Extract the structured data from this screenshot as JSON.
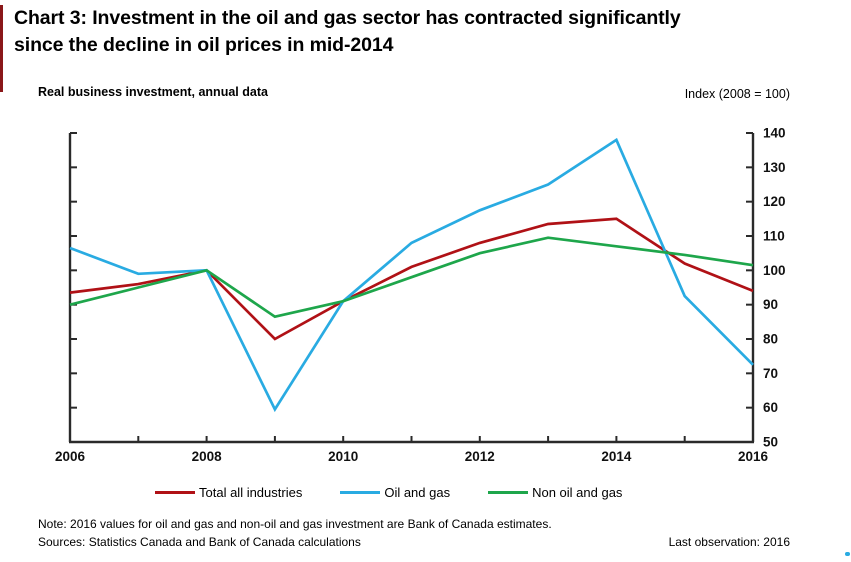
{
  "header": {
    "title_line1": "Chart 3: Investment in the oil and gas sector has contracted significantly",
    "title_line2": "since the decline in oil prices in mid-2014"
  },
  "chart_header": {
    "left_label": "Real business investment, annual data",
    "right_label": "Index (2008 = 100)"
  },
  "footer": {
    "note": "Note: 2016 values for oil and gas and non-oil and gas investment are Bank of Canada estimates.",
    "sources": "Sources: Statistics Canada and Bank of Canada calculations",
    "last_observation": "Last observation: 2016"
  },
  "colors": {
    "axis": "#2a2a2a",
    "tick_label": "#111111",
    "left_edge_bar": "#8a1719",
    "corner_dot": "#29abe2"
  },
  "chart_data": {
    "type": "line",
    "title": "Chart 3: Investment in the oil and gas sector has contracted significantly since the decline in oil prices in mid-2014",
    "subtitle": "Real business investment, annual data",
    "unit_label": "Index (2008 = 100)",
    "xlabel": "",
    "ylabel": "",
    "x": [
      2006,
      2007,
      2008,
      2009,
      2010,
      2011,
      2012,
      2013,
      2014,
      2015,
      2016
    ],
    "x_labeled": [
      2006,
      2008,
      2010,
      2012,
      2014,
      2016
    ],
    "y_ticks": [
      50,
      60,
      70,
      80,
      90,
      100,
      110,
      120,
      130,
      140
    ],
    "ylim": [
      50,
      140
    ],
    "grid": false,
    "legend_position": "bottom",
    "series": [
      {
        "name": "Total all industries",
        "color": "#b01116",
        "values": [
          93.5,
          96,
          100,
          80,
          91,
          101,
          108,
          113.5,
          115,
          102,
          94
        ]
      },
      {
        "name": "Oil and gas",
        "color": "#29abe2",
        "values": [
          106.5,
          99,
          100,
          59.5,
          91,
          108,
          117.5,
          125,
          138,
          92.5,
          72.5
        ]
      },
      {
        "name": "Non oil and gas",
        "color": "#1ea64b",
        "values": [
          90,
          95,
          100,
          86.5,
          91,
          98,
          105,
          109.5,
          107,
          104.5,
          101.5
        ]
      }
    ]
  }
}
